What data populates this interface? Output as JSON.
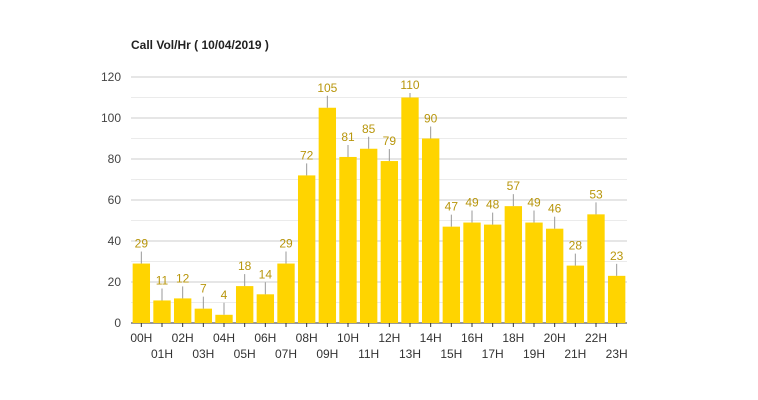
{
  "chart_data": {
    "type": "bar",
    "title": "Call Vol/Hr ( 10/04/2019 )",
    "categories": [
      "00H",
      "01H",
      "02H",
      "03H",
      "04H",
      "05H",
      "06H",
      "07H",
      "08H",
      "09H",
      "10H",
      "11H",
      "12H",
      "13H",
      "14H",
      "15H",
      "16H",
      "17H",
      "18H",
      "19H",
      "20H",
      "21H",
      "22H",
      "23H"
    ],
    "values": [
      29,
      11,
      12,
      7,
      4,
      18,
      14,
      29,
      72,
      105,
      81,
      85,
      79,
      110,
      90,
      47,
      49,
      48,
      57,
      49,
      46,
      28,
      53,
      23
    ],
    "ylim": [
      0,
      120
    ],
    "yticks": [
      0,
      20,
      40,
      60,
      80,
      100,
      120
    ],
    "xlabel": "",
    "ylabel": "",
    "legend": "none",
    "grid": true,
    "colors": {
      "bar": "#ffd400",
      "data_label": "#b8960c",
      "grid_major": "#cccccc",
      "grid_minor": "#ebebeb"
    }
  }
}
